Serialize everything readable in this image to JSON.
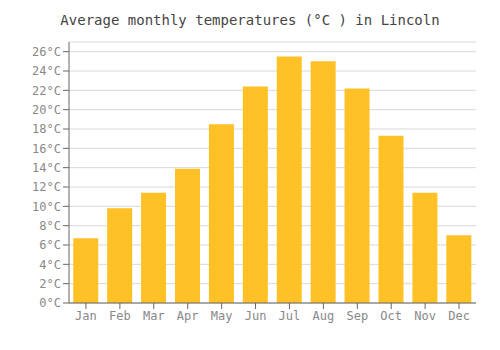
{
  "chart_data": {
    "type": "bar",
    "title": "Average monthly temperatures (°C ) in Lincoln",
    "categories": [
      "Jan",
      "Feb",
      "Mar",
      "Apr",
      "May",
      "Jun",
      "Jul",
      "Aug",
      "Sep",
      "Oct",
      "Nov",
      "Dec"
    ],
    "values": [
      6.7,
      9.8,
      11.4,
      13.9,
      18.5,
      22.4,
      25.5,
      25.0,
      22.2,
      17.3,
      11.4,
      7.0
    ],
    "color": "#FFC125",
    "ylim": [
      0,
      27
    ],
    "yticks": [
      {
        "value": 0,
        "label": "0°C"
      },
      {
        "value": 2,
        "label": "2°C"
      },
      {
        "value": 4,
        "label": "4°C"
      },
      {
        "value": 6,
        "label": "6°C"
      },
      {
        "value": 8,
        "label": "8°C"
      },
      {
        "value": 10,
        "label": "10°C"
      },
      {
        "value": 12,
        "label": "12°C"
      },
      {
        "value": 14,
        "label": "14°C"
      },
      {
        "value": 16,
        "label": "16°C"
      },
      {
        "value": 18,
        "label": "18°C"
      },
      {
        "value": 20,
        "label": "20°C"
      },
      {
        "value": 22,
        "label": "22°C"
      },
      {
        "value": 24,
        "label": "24°C"
      },
      {
        "value": 26,
        "label": "26°C"
      }
    ],
    "grid": true
  }
}
